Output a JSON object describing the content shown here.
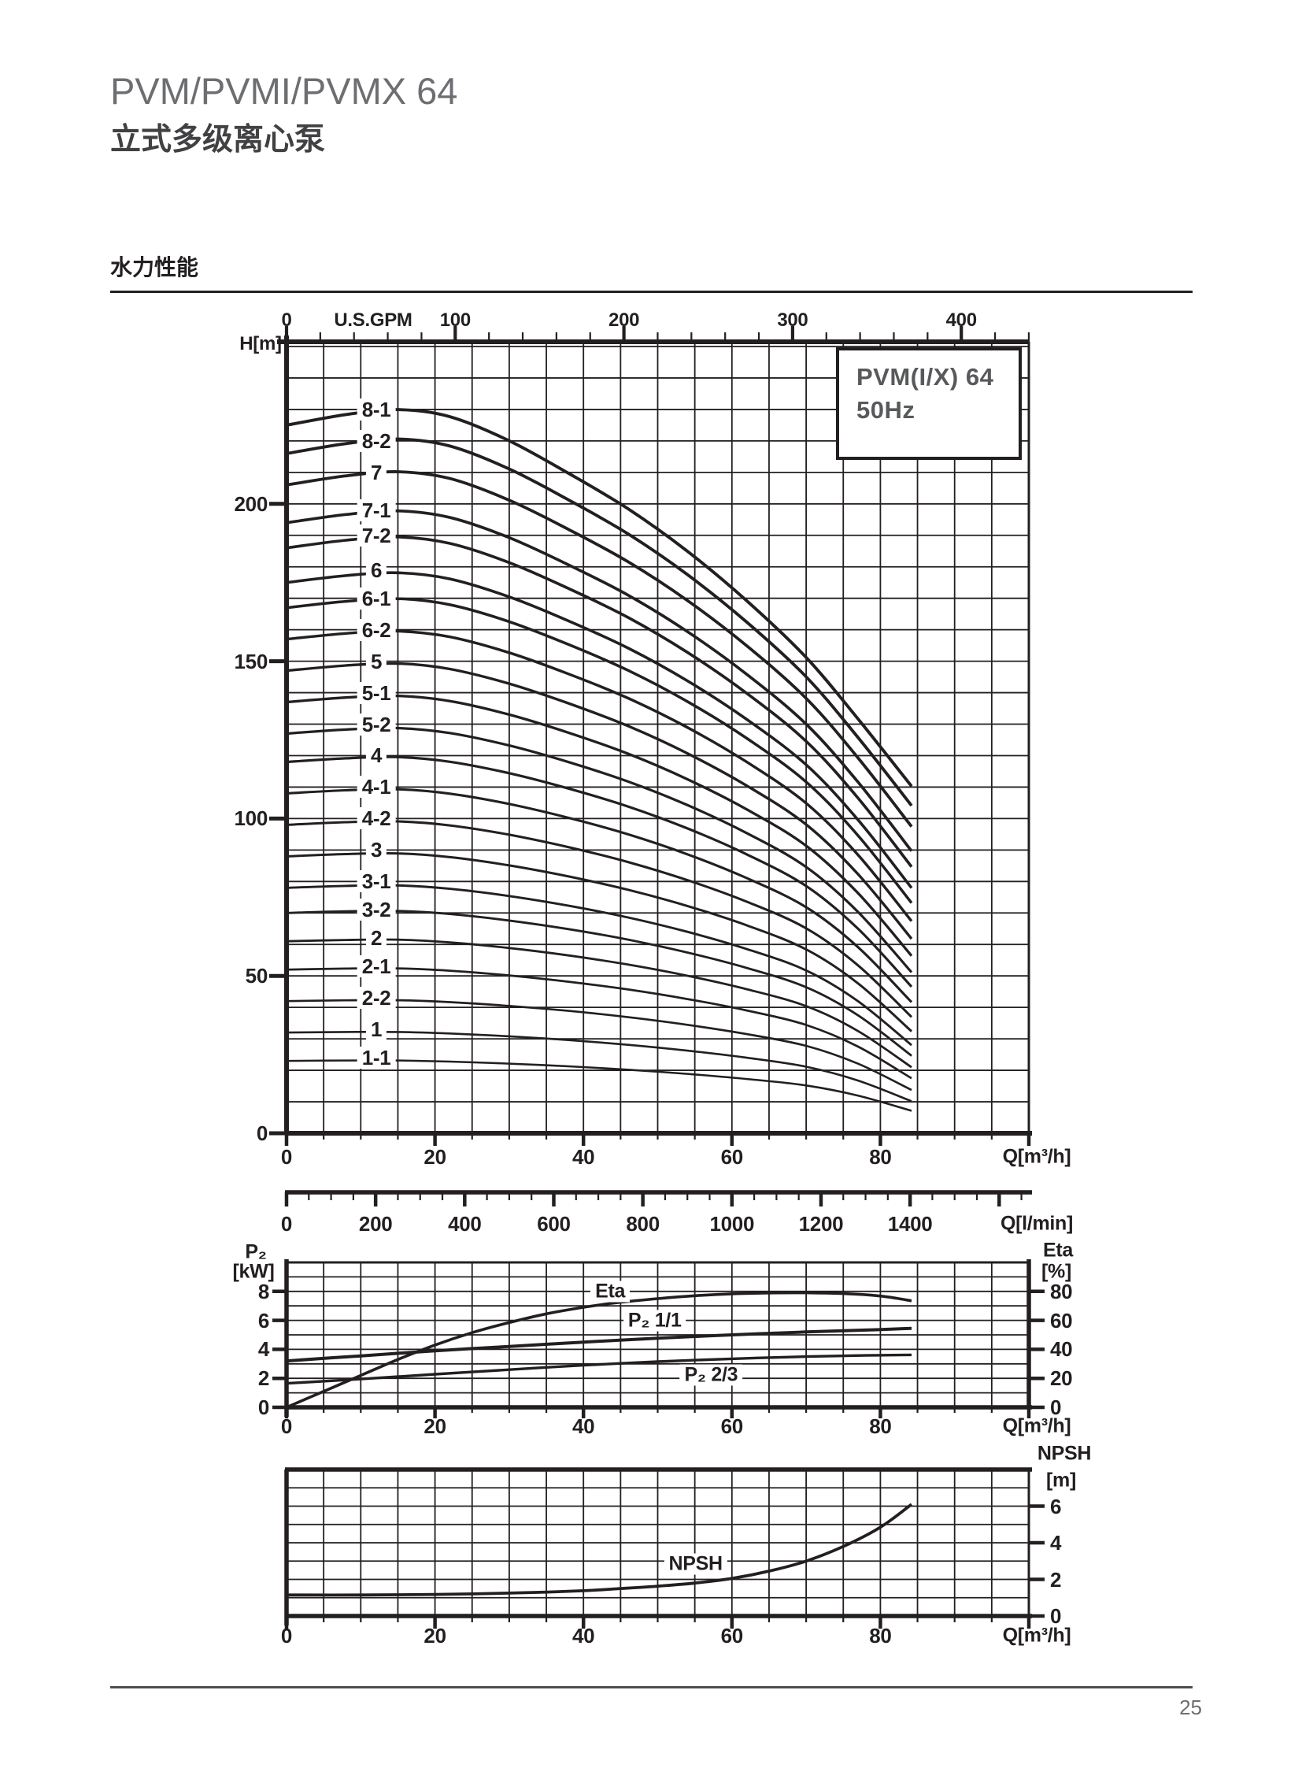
{
  "page": {
    "title": "PVM/PVMI/PVMX 64",
    "subtitle_zh": "立式多级离心泵",
    "section_heading": "水力性能",
    "page_number": "25"
  },
  "legend": {
    "line1": "PVM(I/X) 64",
    "line2": "50Hz"
  },
  "colors": {
    "ink": "#231f20",
    "title_gray": "#6d6e71",
    "legend_gray": "#58595b",
    "footer_gray": "#6d6e71"
  },
  "chart_data": [
    {
      "id": "hq-curves",
      "type": "line",
      "title": "PVM(I/X) 64 50Hz",
      "x_axis_top": {
        "label": "U.S.GPM",
        "ticks": [
          0,
          100,
          200,
          300,
          400
        ],
        "minor_step": 20,
        "range": [
          0,
          440
        ]
      },
      "x_axis_bottom": {
        "label": "Q[m³/h]",
        "ticks": [
          0,
          20,
          40,
          60,
          80
        ],
        "minor_step": 5,
        "range": [
          0,
          100
        ]
      },
      "x_axis_bottom_secondary": {
        "label": "Q[l/min]",
        "ticks": [
          0,
          200,
          400,
          600,
          800,
          1000,
          1200,
          1400
        ],
        "minor_step": 50,
        "range": [
          0,
          1667
        ]
      },
      "y_axis": {
        "label": "H[m]",
        "ticks": [
          0,
          50,
          100,
          150,
          200
        ],
        "grid_step": 10,
        "range": [
          0,
          251
        ]
      },
      "q_max": 84.2,
      "curve_label_q": 12.1,
      "profile_q": [
        0,
        8,
        15,
        22,
        30,
        38,
        46,
        54,
        62,
        70,
        77,
        84.2
      ],
      "profile_high": [
        1.0,
        1.015,
        1.022,
        1.012,
        0.978,
        0.932,
        0.882,
        0.822,
        0.752,
        0.672,
        0.585,
        0.49
      ],
      "profile_low": [
        1.0,
        1.005,
        1.005,
        0.99,
        0.962,
        0.925,
        0.878,
        0.82,
        0.75,
        0.66,
        0.52,
        0.31
      ],
      "series": [
        {
          "label": "8-1",
          "shutoff_head_m": 225,
          "label_head_m": 230
        },
        {
          "label": "8-2",
          "shutoff_head_m": 216,
          "label_head_m": 220
        },
        {
          "label": "7",
          "shutoff_head_m": 206,
          "label_head_m": 210
        },
        {
          "label": "7-1",
          "shutoff_head_m": 194,
          "label_head_m": 198
        },
        {
          "label": "7-2",
          "shutoff_head_m": 186,
          "label_head_m": 190
        },
        {
          "label": "6",
          "shutoff_head_m": 175,
          "label_head_m": 179
        },
        {
          "label": "6-1",
          "shutoff_head_m": 167,
          "label_head_m": 170
        },
        {
          "label": "6-2",
          "shutoff_head_m": 157,
          "label_head_m": 160
        },
        {
          "label": "5",
          "shutoff_head_m": 147,
          "label_head_m": 150
        },
        {
          "label": "5-1",
          "shutoff_head_m": 137,
          "label_head_m": 140
        },
        {
          "label": "5-2",
          "shutoff_head_m": 127,
          "label_head_m": 130
        },
        {
          "label": "4",
          "shutoff_head_m": 118,
          "label_head_m": 120
        },
        {
          "label": "4-1",
          "shutoff_head_m": 108,
          "label_head_m": 110
        },
        {
          "label": "4-2",
          "shutoff_head_m": 98,
          "label_head_m": 100
        },
        {
          "label": "3",
          "shutoff_head_m": 88,
          "label_head_m": 90
        },
        {
          "label": "3-1",
          "shutoff_head_m": 78,
          "label_head_m": 80
        },
        {
          "label": "3-2",
          "shutoff_head_m": 70,
          "label_head_m": 71
        },
        {
          "label": "2",
          "shutoff_head_m": 61,
          "label_head_m": 62
        },
        {
          "label": "2-1",
          "shutoff_head_m": 52,
          "label_head_m": 53
        },
        {
          "label": "2-2",
          "shutoff_head_m": 42,
          "label_head_m": 43
        },
        {
          "label": "1",
          "shutoff_head_m": 32,
          "label_head_m": 33
        },
        {
          "label": "1-1",
          "shutoff_head_m": 23,
          "label_head_m": 24
        }
      ]
    },
    {
      "id": "power-efficiency",
      "type": "line",
      "y_axis_left": {
        "name": "P₂",
        "unit": "[kW]",
        "ticks": [
          0,
          2,
          4,
          6,
          8
        ],
        "grid_step": 1,
        "range": [
          0,
          10
        ]
      },
      "y_axis_right": {
        "name": "Eta",
        "unit": "[%]",
        "ticks": [
          0,
          20,
          40,
          60,
          80
        ],
        "range": [
          0,
          100
        ]
      },
      "x_axis": {
        "label": "Q[m³/h]",
        "ticks": [
          0,
          20,
          40,
          60,
          80
        ],
        "minor_step": 5,
        "range": [
          0,
          100
        ]
      },
      "series": [
        {
          "name": "Eta",
          "axis": "right",
          "label": "Eta",
          "label_at": {
            "q": 43.6,
            "value": 80
          },
          "points": [
            [
              0,
              0
            ],
            [
              5,
              11
            ],
            [
              10,
              22
            ],
            [
              15,
              33
            ],
            [
              20,
              43
            ],
            [
              25,
              51.5
            ],
            [
              30,
              58.5
            ],
            [
              35,
              64.5
            ],
            [
              40,
              69
            ],
            [
              45,
              72.5
            ],
            [
              50,
              75
            ],
            [
              55,
              77
            ],
            [
              60,
              78.3
            ],
            [
              65,
              78.9
            ],
            [
              70,
              79
            ],
            [
              75,
              78.5
            ],
            [
              80,
              76.8
            ],
            [
              84.2,
              73.5
            ]
          ]
        },
        {
          "name": "P₂ 1/1",
          "axis": "left",
          "label": "P₂ 1/1",
          "label_at": {
            "q": 49.6,
            "value": 6.0
          },
          "points": [
            [
              0,
              3.2
            ],
            [
              10,
              3.55
            ],
            [
              20,
              3.9
            ],
            [
              30,
              4.2
            ],
            [
              40,
              4.5
            ],
            [
              50,
              4.77
            ],
            [
              60,
              5.0
            ],
            [
              70,
              5.2
            ],
            [
              78,
              5.33
            ],
            [
              84.2,
              5.45
            ]
          ]
        },
        {
          "name": "P₂ 2/3",
          "axis": "left",
          "label": "P₂ 2/3",
          "label_at": {
            "q": 57.2,
            "value": 2.25
          },
          "points": [
            [
              0,
              1.65
            ],
            [
              10,
              1.95
            ],
            [
              20,
              2.28
            ],
            [
              30,
              2.6
            ],
            [
              40,
              2.9
            ],
            [
              50,
              3.15
            ],
            [
              60,
              3.35
            ],
            [
              70,
              3.5
            ],
            [
              78,
              3.58
            ],
            [
              84.2,
              3.62
            ]
          ]
        }
      ]
    },
    {
      "id": "npsh",
      "type": "line",
      "y_axis_right": {
        "name": "NPSH",
        "unit": "[m]",
        "ticks": [
          0,
          2,
          4,
          6
        ],
        "grid_step": 1,
        "range": [
          0,
          8
        ]
      },
      "x_axis": {
        "label": "Q[m³/h]",
        "ticks": [
          0,
          20,
          40,
          60,
          80
        ],
        "minor_step": 5,
        "range": [
          0,
          100
        ]
      },
      "series": [
        {
          "name": "NPSH",
          "label": "NPSH",
          "label_at": {
            "q": 55.1,
            "value": 2.85
          },
          "points": [
            [
              0,
              1.15
            ],
            [
              10,
              1.15
            ],
            [
              20,
              1.18
            ],
            [
              30,
              1.25
            ],
            [
              40,
              1.38
            ],
            [
              45,
              1.5
            ],
            [
              50,
              1.63
            ],
            [
              55,
              1.8
            ],
            [
              60,
              2.05
            ],
            [
              65,
              2.45
            ],
            [
              70,
              3.0
            ],
            [
              75,
              3.8
            ],
            [
              80,
              4.85
            ],
            [
              84.2,
              6.1
            ]
          ]
        }
      ]
    }
  ]
}
